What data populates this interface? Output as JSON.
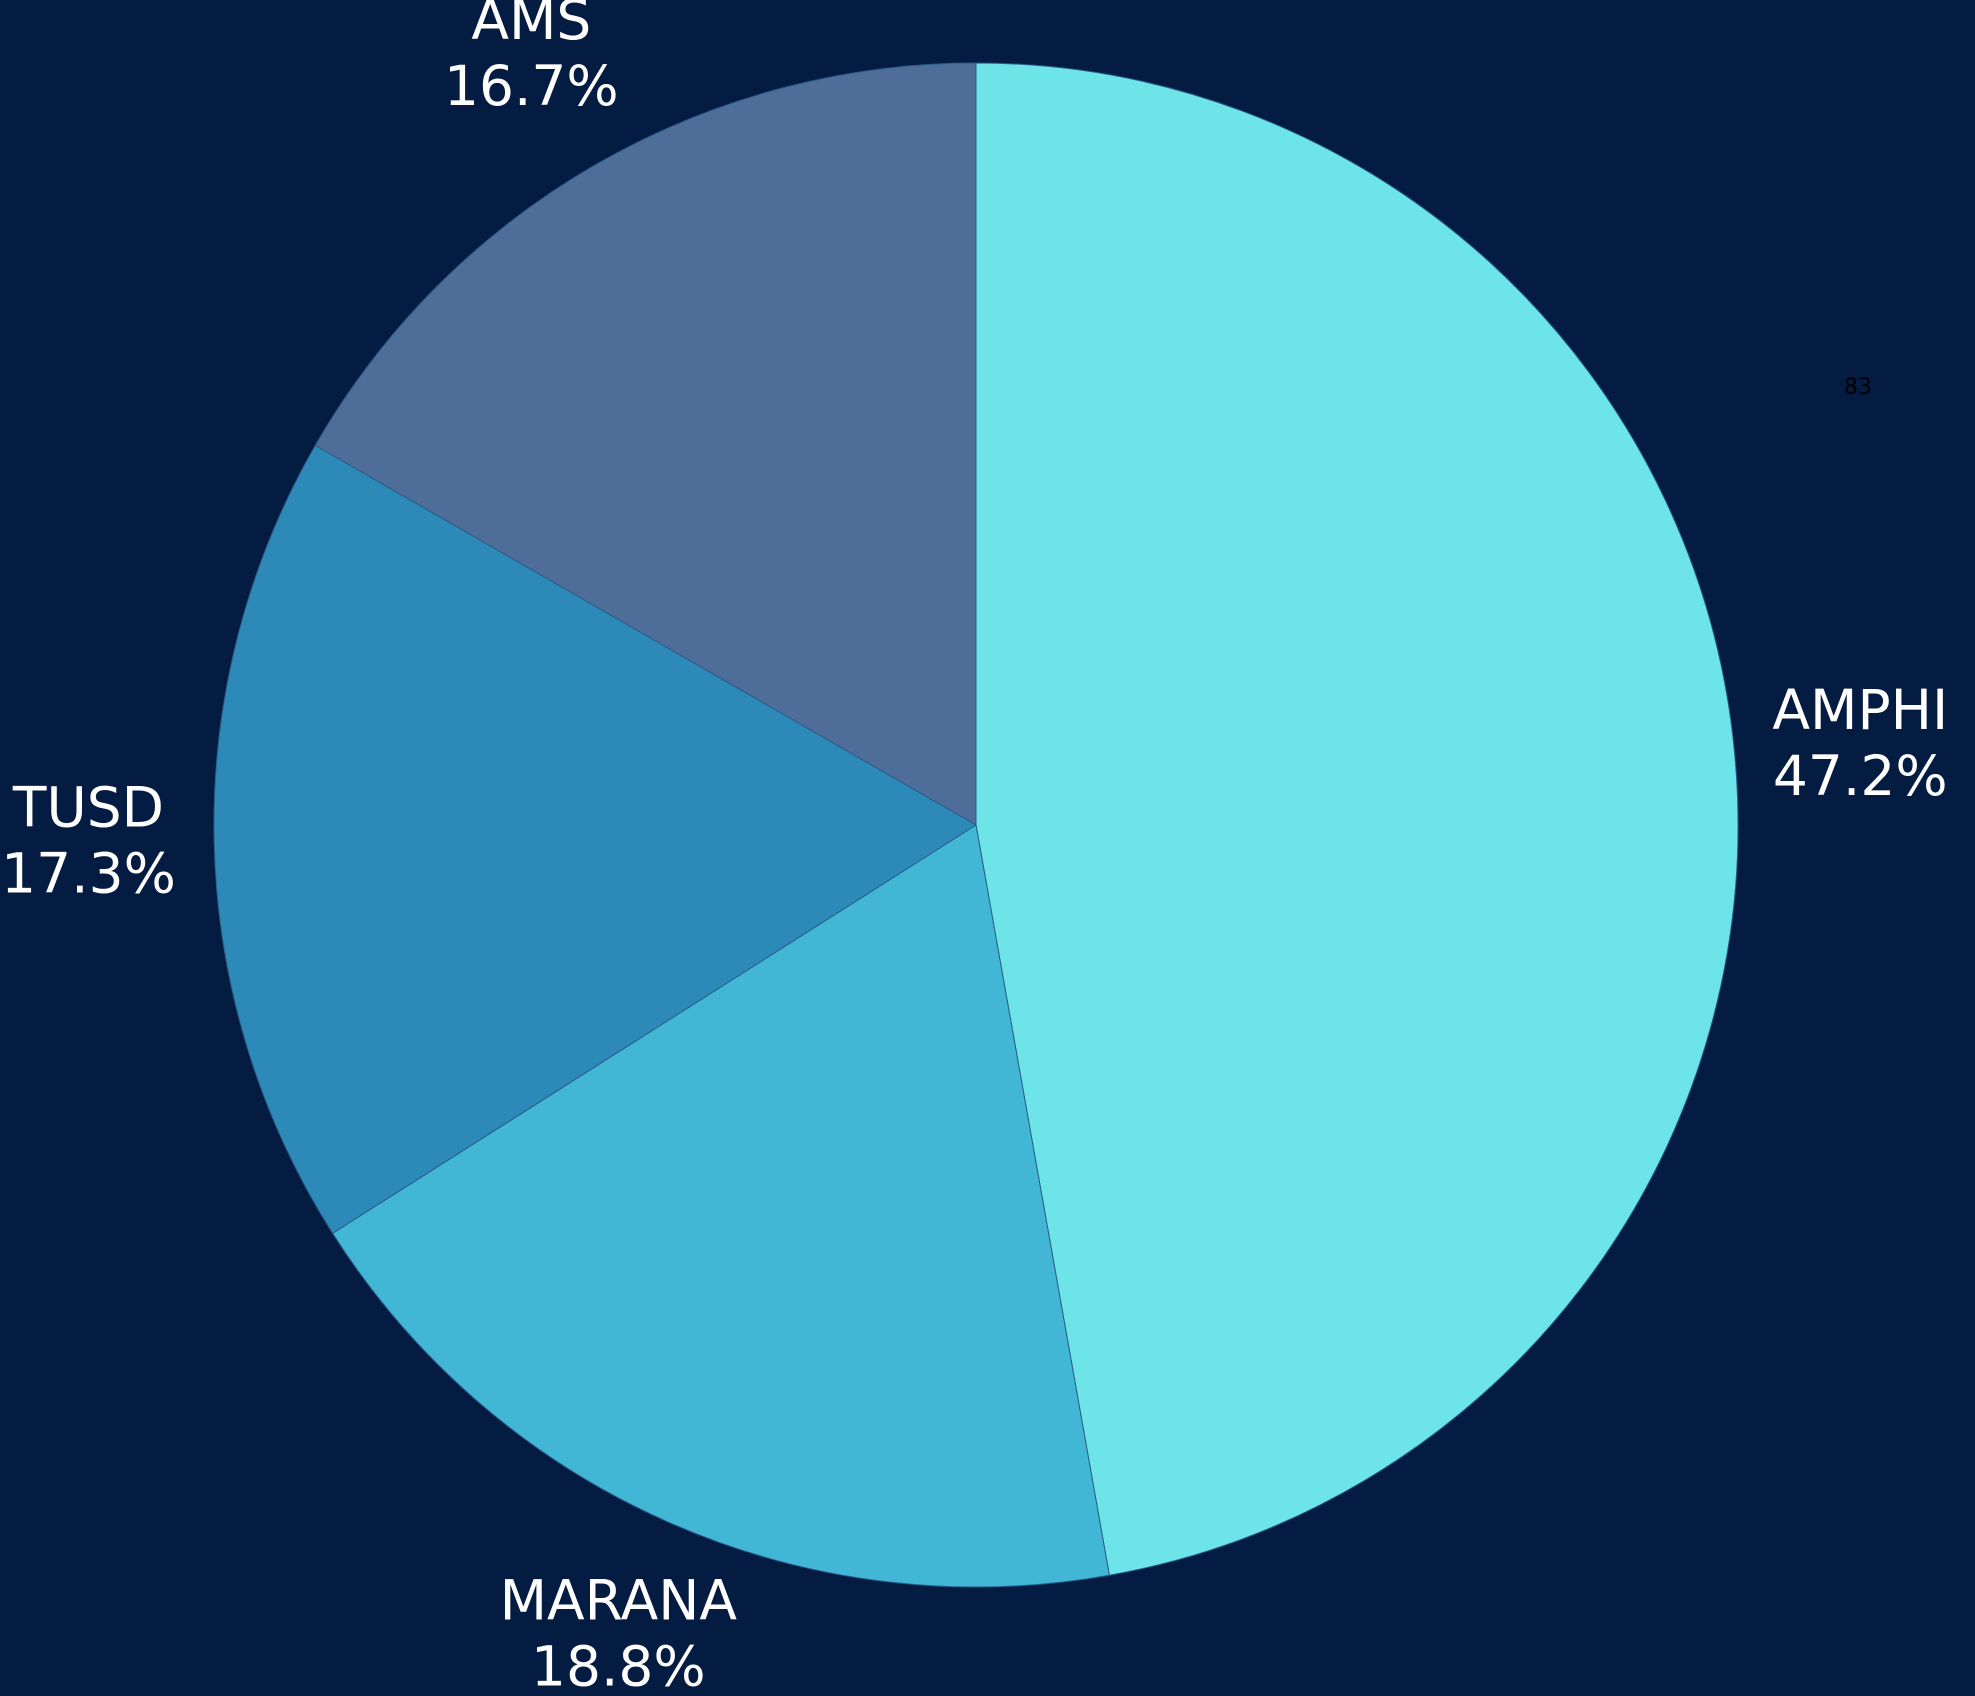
{
  "chart_data": {
    "type": "pie",
    "categories": [
      "AMPHI",
      "MARANA",
      "TUSD",
      "AMS"
    ],
    "values": [
      47.2,
      18.8,
      17.3,
      16.7
    ],
    "value_labels": [
      "47.2%",
      "18.8%",
      "17.3%",
      "16.7%"
    ],
    "colors": [
      "#6de5e8",
      "#42b6d5",
      "#2d8ab8",
      "#4f6d99"
    ],
    "annotation": "83"
  }
}
